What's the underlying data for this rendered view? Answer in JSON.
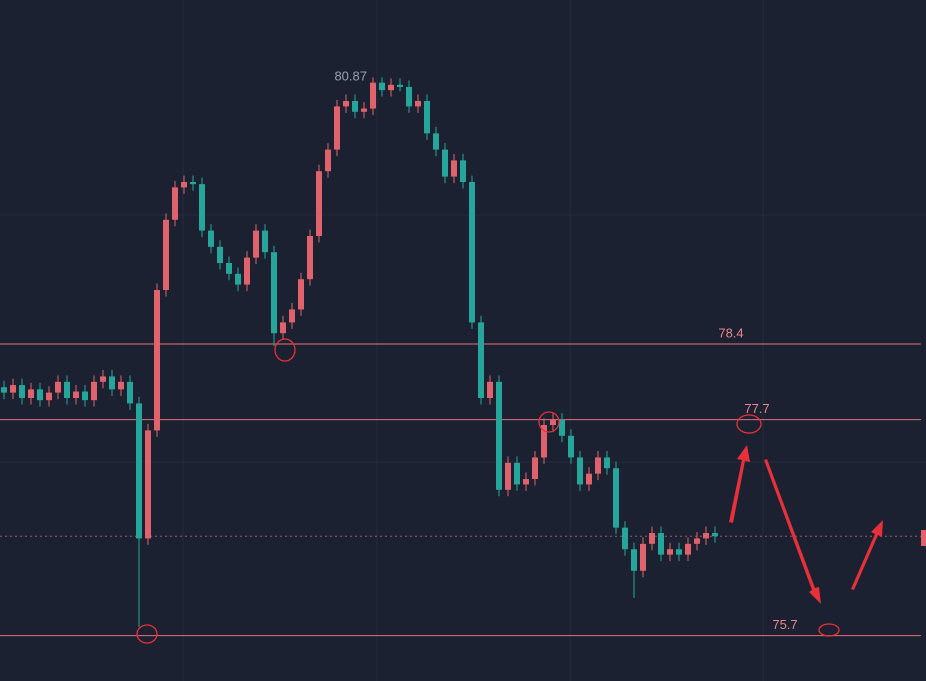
{
  "chart_data": {
    "type": "candlestick",
    "open": [
      78.0,
      77.95,
      78.02,
      77.9,
      77.98,
      77.88,
      77.95,
      78.05,
      77.9,
      77.96,
      77.88,
      78.05,
      78.1,
      77.98,
      78.05,
      77.85,
      76.6,
      77.6,
      78.9,
      79.55,
      79.85,
      79.9,
      79.88,
      79.45,
      79.3,
      79.15,
      79.05,
      78.95,
      79.2,
      79.45,
      79.25,
      78.5,
      78.6,
      78.72,
      79.0,
      79.4,
      80.0,
      80.2,
      80.6,
      80.65,
      80.55,
      80.58,
      80.82,
      80.75,
      80.8,
      80.78,
      80.6,
      80.65,
      80.35,
      80.2,
      79.95,
      80.1,
      79.9,
      78.6,
      77.9,
      78.05,
      77.05,
      77.3,
      77.1,
      77.15,
      77.35,
      77.65,
      77.7,
      77.55,
      77.35,
      77.1,
      77.2,
      77.35,
      77.25,
      76.7,
      76.5,
      76.3,
      76.55,
      76.65,
      76.45,
      76.5,
      76.45,
      76.55,
      76.6,
      76.65
    ],
    "high": [
      78.06,
      78.08,
      78.08,
      78.04,
      78.04,
      78.01,
      78.11,
      78.11,
      78.02,
      78.02,
      78.11,
      78.16,
      78.16,
      78.11,
      78.11,
      77.91,
      77.66,
      78.96,
      79.61,
      79.91,
      79.96,
      79.96,
      79.94,
      79.51,
      79.36,
      79.21,
      79.11,
      79.26,
      79.51,
      79.51,
      79.31,
      78.66,
      78.78,
      79.06,
      79.46,
      80.06,
      80.26,
      80.66,
      80.71,
      80.71,
      80.64,
      80.87,
      80.87,
      80.86,
      80.86,
      80.84,
      80.71,
      80.71,
      80.41,
      80.26,
      80.16,
      80.16,
      79.96,
      78.66,
      78.11,
      78.11,
      77.36,
      77.36,
      77.21,
      77.41,
      77.71,
      77.76,
      77.76,
      77.61,
      77.41,
      77.26,
      77.41,
      77.41,
      77.31,
      76.76,
      76.56,
      76.61,
      76.71,
      76.71,
      76.56,
      76.56,
      76.61,
      76.66,
      76.71,
      76.71
    ],
    "low": [
      77.89,
      77.89,
      77.84,
      77.84,
      77.82,
      77.82,
      77.89,
      77.84,
      77.84,
      77.82,
      77.82,
      77.99,
      77.92,
      77.92,
      77.79,
      75.78,
      76.54,
      77.54,
      78.84,
      79.49,
      79.79,
      79.82,
      79.39,
      79.24,
      79.09,
      78.99,
      78.89,
      78.89,
      79.14,
      79.19,
      78.38,
      78.44,
      78.54,
      78.66,
      78.94,
      79.34,
      79.94,
      80.14,
      80.54,
      80.49,
      80.49,
      80.52,
      80.69,
      80.69,
      80.74,
      80.54,
      80.54,
      80.29,
      80.14,
      79.89,
      79.89,
      79.84,
      78.54,
      77.84,
      77.84,
      76.99,
      76.99,
      77.04,
      77.04,
      77.09,
      77.29,
      77.59,
      77.49,
      77.29,
      77.04,
      77.04,
      77.14,
      77.19,
      76.64,
      76.44,
      76.05,
      76.24,
      76.49,
      76.39,
      76.39,
      76.39,
      76.39,
      76.49,
      76.54,
      76.56
    ],
    "close": [
      77.95,
      78.02,
      77.9,
      77.98,
      77.88,
      77.95,
      78.05,
      77.9,
      77.96,
      77.88,
      78.05,
      78.1,
      77.98,
      78.05,
      77.85,
      76.6,
      77.6,
      78.9,
      79.55,
      79.85,
      79.9,
      79.88,
      79.45,
      79.3,
      79.15,
      79.05,
      78.95,
      79.2,
      79.45,
      79.25,
      78.5,
      78.6,
      78.72,
      79.0,
      79.4,
      80.0,
      80.2,
      80.6,
      80.65,
      80.55,
      80.58,
      80.82,
      80.75,
      80.8,
      80.78,
      80.6,
      80.65,
      80.35,
      80.2,
      79.95,
      80.1,
      79.9,
      78.6,
      77.9,
      78.05,
      77.05,
      77.3,
      77.1,
      77.15,
      77.35,
      77.65,
      77.7,
      77.55,
      77.35,
      77.1,
      77.2,
      77.35,
      77.25,
      76.7,
      76.5,
      76.3,
      76.55,
      76.65,
      76.45,
      76.5,
      76.45,
      76.55,
      76.6,
      76.65,
      76.62
    ],
    "up_color": "#e0626d",
    "down_color": "#26a69a",
    "ylim": [
      75.28,
      81.585
    ],
    "high_marker": 80.87,
    "levels": [
      78.4,
      77.7,
      75.7
    ],
    "last_price": 76.62
  }
}
